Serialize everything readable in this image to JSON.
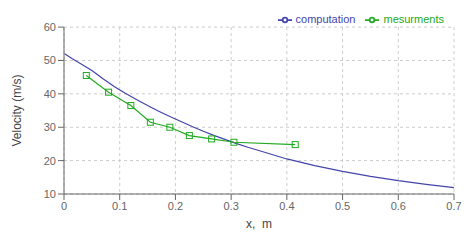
{
  "chart_data": {
    "type": "line",
    "xlabel": "x,  m",
    "ylabel": "Velocity (m/s)",
    "series": [
      {
        "name": "computation",
        "color": "#4444aa",
        "x": [
          0.001,
          0.015,
          0.03,
          0.05,
          0.07,
          0.09,
          0.11,
          0.13,
          0.15,
          0.17,
          0.19,
          0.21,
          0.23,
          0.25,
          0.27,
          0.29,
          0.31,
          0.33,
          0.36,
          0.4,
          0.45,
          0.5,
          0.55,
          0.6,
          0.65,
          0.7
        ],
        "values": [
          52.0,
          50.5,
          49.0,
          47.0,
          44.5,
          42.2,
          40.2,
          38.3,
          36.5,
          34.8,
          33.2,
          31.7,
          30.2,
          28.8,
          27.5,
          26.3,
          25.1,
          24.0,
          22.5,
          20.5,
          18.5,
          16.8,
          15.3,
          14.0,
          12.9,
          11.9
        ]
      },
      {
        "name": "mesurments",
        "color": "#22aa22",
        "marker": "square",
        "x": [
          0.04,
          0.08,
          0.12,
          0.155,
          0.19,
          0.225,
          0.265,
          0.305,
          0.415
        ],
        "values": [
          45.5,
          40.5,
          36.5,
          31.5,
          30.0,
          27.5,
          26.5,
          25.5,
          24.8
        ]
      }
    ],
    "xlim": [
      0,
      0.7
    ],
    "ylim": [
      10,
      60
    ],
    "xticks": [
      0,
      0.1,
      0.2,
      0.3,
      0.4,
      0.5,
      0.6,
      0.7
    ],
    "yticks": [
      10,
      20,
      30,
      40,
      50,
      60
    ],
    "grid": true,
    "legend": "upper right"
  }
}
